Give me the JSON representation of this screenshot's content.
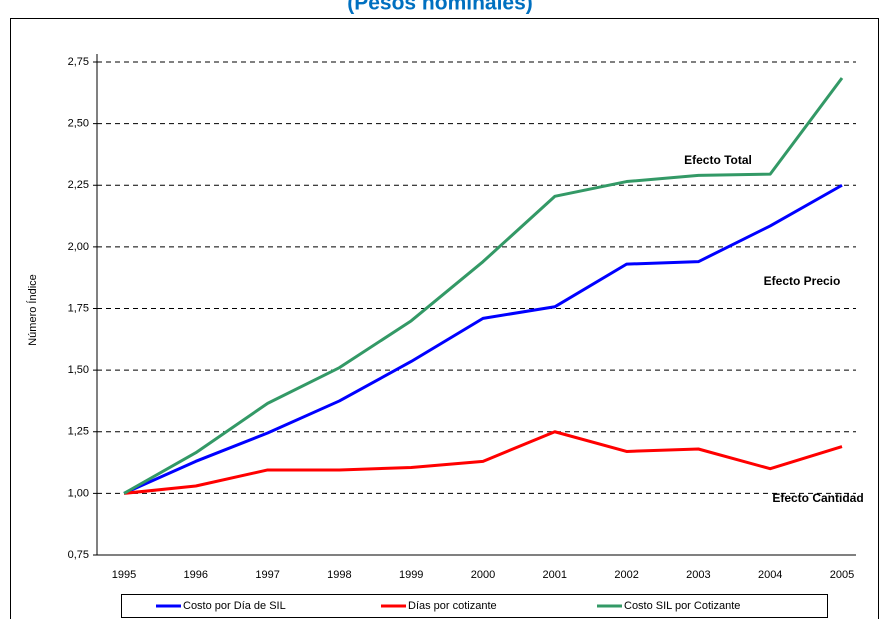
{
  "chart_data": {
    "type": "line",
    "title": "(Pesos nominales)",
    "ylabel": "Número Índice",
    "categories": [
      "1995",
      "1996",
      "1997",
      "1998",
      "1999",
      "2000",
      "2001",
      "2002",
      "2003",
      "2004",
      "2005"
    ],
    "series": [
      {
        "name": "Costo por Día de SIL",
        "color": "#0000ff",
        "values": [
          1.0,
          1.13,
          1.245,
          1.375,
          1.535,
          1.71,
          1.757,
          1.93,
          1.94,
          2.085,
          2.25
        ]
      },
      {
        "name": "Días por cotizante",
        "color": "#ff0000",
        "values": [
          1.0,
          1.03,
          1.095,
          1.095,
          1.105,
          1.13,
          1.25,
          1.17,
          1.18,
          1.1,
          1.19
        ]
      },
      {
        "name": "Costo SIL por Cotizante",
        "color": "#339966",
        "values": [
          1.0,
          1.165,
          1.365,
          1.51,
          1.7,
          1.94,
          2.205,
          2.265,
          2.29,
          2.295,
          2.685
        ]
      }
    ],
    "ylim": [
      0.75,
      2.75
    ],
    "yticks": [
      {
        "value": 0.75,
        "label": "0,75"
      },
      {
        "value": 1.0,
        "label": "1,00"
      },
      {
        "value": 1.25,
        "label": "1,25"
      },
      {
        "value": 1.5,
        "label": "1,50"
      },
      {
        "value": 1.75,
        "label": "1,75"
      },
      {
        "value": 2.0,
        "label": "2,00"
      },
      {
        "value": 2.25,
        "label": "2,25"
      },
      {
        "value": 2.5,
        "label": "2,50"
      },
      {
        "value": 2.75,
        "label": "2,75"
      }
    ],
    "grid": true,
    "annotations": [
      "Efecto Total",
      "Efecto Precio",
      "Efecto Cantidad"
    ],
    "legend": "bottom"
  }
}
